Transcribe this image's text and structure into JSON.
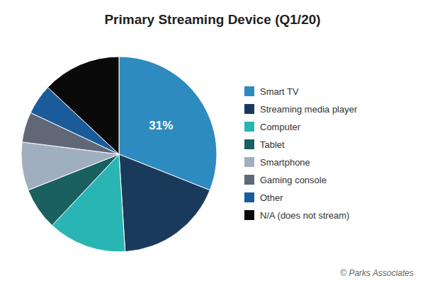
{
  "chart_data": {
    "type": "pie",
    "title": "Primary Streaming Device (Q1/20)",
    "categories": [
      "Smart TV",
      "Streaming media player",
      "Computer",
      "Tablet",
      "Smartphone",
      "Gaming console",
      "Other",
      "N/A (does not stream)"
    ],
    "values": [
      31,
      18,
      13,
      7,
      8,
      5,
      5,
      13
    ],
    "colors": [
      "#2e8bc0",
      "#1a3a5c",
      "#2ab5b5",
      "#1a6060",
      "#a0afbf",
      "#606878",
      "#1a5c9a",
      "#0a0a0a"
    ],
    "data_labels": true,
    "value_labels": [
      "31%",
      null,
      null,
      null,
      null,
      null,
      null,
      null
    ],
    "legend": "right",
    "annotations": [
      "© Parks Associates"
    ]
  }
}
